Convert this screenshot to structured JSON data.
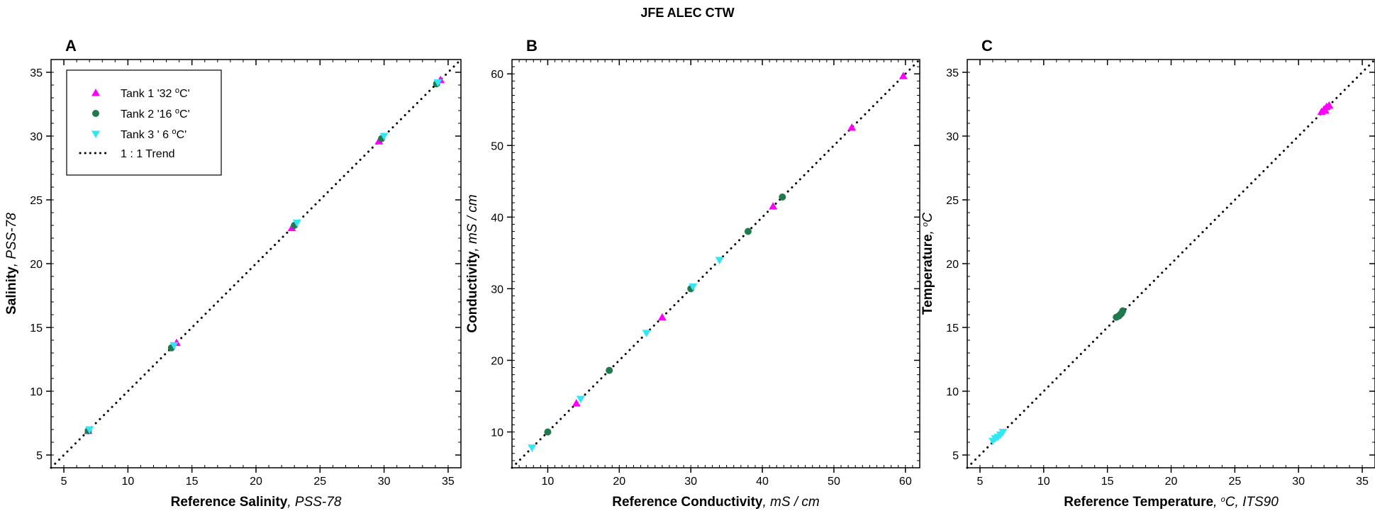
{
  "title": "JFE ALEC CTW",
  "colors": {
    "tank1": "#ff00ff",
    "tank2": "#1f7a4d",
    "tank3": "#33e6f5",
    "trend": "#000000"
  },
  "legend": {
    "items": [
      {
        "marker": "triangle-up",
        "pre": "Tank 1 '32 ",
        "sup": "o",
        "post": "C'"
      },
      {
        "marker": "circle",
        "pre": "Tank 2 '16 ",
        "sup": "o",
        "post": "C'"
      },
      {
        "marker": "triangle-down",
        "pre": "Tank  3 ' 6 ",
        "sup": "o",
        "post": "C'"
      },
      {
        "marker": "dotted-line",
        "pre": "1 : 1 Trend",
        "sup": "",
        "post": ""
      }
    ]
  },
  "chart_data": [
    {
      "type": "scatter",
      "panel": "A",
      "xlabel_bold": "Reference Salinity",
      "xlabel_rest": ", PSS-78",
      "ylabel_bold": "Salinity",
      "ylabel_rest": ", PSS-78",
      "xlim": [
        4,
        36
      ],
      "ylim": [
        4,
        36
      ],
      "xticks": [
        5,
        10,
        15,
        20,
        25,
        30,
        35
      ],
      "yticks": [
        5,
        10,
        15,
        20,
        25,
        30,
        35
      ],
      "trend": {
        "x": [
          4,
          36
        ],
        "y": [
          4,
          36
        ]
      },
      "series": [
        {
          "key": "tank1",
          "marker": "triangle-up",
          "x": [
            6.9,
            13.8,
            22.8,
            29.6,
            34.4
          ],
          "y": [
            6.9,
            13.8,
            22.8,
            29.6,
            34.4
          ]
        },
        {
          "key": "tank2",
          "marker": "circle",
          "x": [
            6.9,
            13.4,
            23.0,
            29.8,
            34.1
          ],
          "y": [
            6.9,
            13.4,
            23.0,
            29.8,
            34.1
          ]
        },
        {
          "key": "tank3",
          "marker": "triangle-down",
          "x": [
            7.0,
            13.6,
            23.2,
            30.0,
            34.2
          ],
          "y": [
            7.0,
            13.6,
            23.2,
            30.0,
            34.2
          ]
        }
      ]
    },
    {
      "type": "scatter",
      "panel": "B",
      "xlabel_bold": "Reference Conductivity",
      "xlabel_rest": ", mS / cm",
      "ylabel_bold": "Conductivity",
      "ylabel_rest": ", mS / cm",
      "xlim": [
        5,
        62
      ],
      "ylim": [
        5,
        62
      ],
      "xticks": [
        10,
        20,
        30,
        40,
        50,
        60
      ],
      "yticks": [
        10,
        20,
        30,
        40,
        50,
        60
      ],
      "trend": {
        "x": [
          5,
          62
        ],
        "y": [
          5,
          62
        ]
      },
      "series": [
        {
          "key": "tank1",
          "marker": "triangle-up",
          "x": [
            14.0,
            26.0,
            41.5,
            52.5,
            59.7
          ],
          "y": [
            14.0,
            26.0,
            41.5,
            52.5,
            59.7
          ]
        },
        {
          "key": "tank2",
          "marker": "circle",
          "x": [
            10.0,
            18.6,
            30.0,
            38.0,
            42.8
          ],
          "y": [
            10.0,
            18.6,
            30.0,
            38.0,
            42.8
          ]
        },
        {
          "key": "tank3",
          "marker": "triangle-down",
          "x": [
            7.8,
            14.6,
            23.8,
            30.3,
            34.0
          ],
          "y": [
            7.8,
            14.6,
            23.8,
            30.3,
            34.0
          ]
        }
      ]
    },
    {
      "type": "scatter",
      "panel": "C",
      "xlabel_bold": "Reference Temperature",
      "xlabel_rest": ", oC, ITS90",
      "ylabel_bold": "Temperature",
      "ylabel_rest": ", oC",
      "xlim": [
        4,
        36
      ],
      "ylim": [
        4,
        36
      ],
      "xticks": [
        5,
        10,
        15,
        20,
        25,
        30,
        35
      ],
      "yticks": [
        5,
        10,
        15,
        20,
        25,
        30,
        35
      ],
      "trend": {
        "x": [
          4,
          36
        ],
        "y": [
          4,
          36
        ]
      },
      "series": [
        {
          "key": "tank1",
          "marker": "triangle-up",
          "x": [
            31.8,
            32.0,
            32.2,
            32.4,
            32.1
          ],
          "y": [
            31.9,
            32.1,
            32.3,
            32.4,
            32.0
          ]
        },
        {
          "key": "tank2",
          "marker": "circle",
          "x": [
            15.7,
            15.9,
            16.0,
            16.1,
            16.2
          ],
          "y": [
            15.8,
            15.9,
            16.0,
            16.1,
            16.3
          ]
        },
        {
          "key": "tank3",
          "marker": "triangle-down",
          "x": [
            6.0,
            6.2,
            6.4,
            6.6,
            6.8
          ],
          "y": [
            6.1,
            6.3,
            6.4,
            6.6,
            6.8
          ]
        }
      ]
    }
  ]
}
